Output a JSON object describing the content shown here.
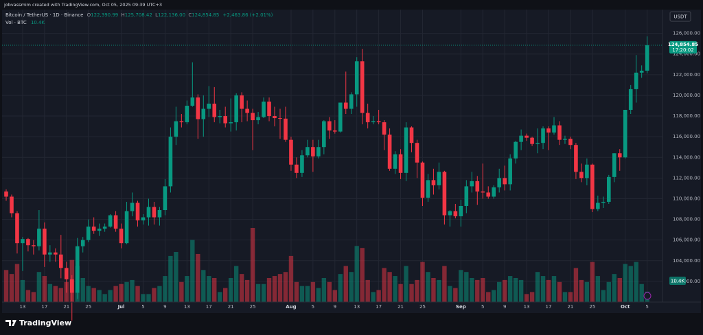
{
  "chart_data": {
    "type": "candlestick",
    "credit": "jobvassmim created with TradingView.com, Oct 05, 2025 09:39 UTC+3",
    "title": "Bitcoin / TetherUS · 1D · Binance",
    "ohlc_labels": [
      {
        "key": "O",
        "value": "122,390.99"
      },
      {
        "key": "H",
        "value": "125,708.42"
      },
      {
        "key": "L",
        "value": "122,136.00"
      },
      {
        "key": "C",
        "value": "124,854.85"
      }
    ],
    "change": "+2,463.86 (+2.01%)",
    "volume_name": "Vol · BTC",
    "volume_last": "10.4K",
    "currency": "USDT",
    "price_tag": "124,854.85",
    "countdown": "17:20:02",
    "brand": "TradingView",
    "up_color": "#089981",
    "down_color": "#f23645",
    "grid": true,
    "categories": [
      null,
      null,
      null,
      "13",
      null,
      null,
      null,
      "17",
      null,
      null,
      null,
      "21",
      null,
      null,
      null,
      "25",
      null,
      null,
      null,
      null,
      null,
      "Jul",
      null,
      null,
      null,
      "5",
      null,
      null,
      null,
      "9",
      null,
      null,
      null,
      "13",
      null,
      null,
      null,
      "17",
      null,
      null,
      null,
      "21",
      null,
      null,
      null,
      "25",
      null,
      null,
      null,
      null,
      null,
      null,
      "Aug",
      null,
      null,
      null,
      "5",
      null,
      null,
      null,
      "9",
      null,
      null,
      null,
      "13",
      null,
      null,
      null,
      "17",
      null,
      null,
      null,
      "21",
      null,
      null,
      null,
      "25",
      null,
      null,
      null,
      null,
      null,
      null,
      "Sep",
      null,
      null,
      null,
      "5",
      null,
      null,
      null,
      "9",
      null,
      null,
      null,
      "13",
      null,
      null,
      null,
      "17",
      null,
      null,
      null,
      "21",
      null,
      null,
      null,
      "25",
      null,
      null,
      null,
      null,
      null,
      "Oct",
      null,
      null,
      null,
      "5"
    ],
    "open": [
      110700,
      110200,
      108600,
      105700,
      106100,
      105500,
      105400,
      107100,
      104600,
      104800,
      104600,
      103300,
      102200,
      100900,
      105400,
      106000,
      107300,
      106900,
      107100,
      107300,
      108400,
      107100,
      105700,
      108800,
      109600,
      107900,
      108200,
      109200,
      108200,
      108900,
      111200,
      116000,
      117500,
      117400,
      119000,
      119800,
      117700,
      118700,
      119200,
      117900,
      118000,
      117300,
      117400,
      120000,
      118700,
      118300,
      117600,
      117900,
      119400,
      118000,
      117800,
      117750,
      115700,
      113300,
      112500,
      114200,
      115000,
      114100,
      115000,
      117500,
      116600,
      116500,
      119300,
      118700,
      120100,
      123300,
      118300,
      117400,
      117500,
      117400,
      116200,
      112900,
      114300,
      112500,
      116900,
      115400,
      113500,
      110100,
      111800,
      111300,
      112600,
      108400,
      108800,
      108300,
      109300,
      111200,
      111700,
      110700,
      110600,
      110200,
      111100,
      112000,
      111400,
      113900,
      115500,
      116100,
      115900,
      115300,
      115400,
      116800,
      116400,
      117100,
      115700,
      115800,
      115200,
      112600,
      112000,
      113300,
      109000,
      109600,
      109700,
      112100,
      114400,
      114000,
      118600,
      120600,
      122200,
      122390.99
    ],
    "high": [
      110900,
      110400,
      108800,
      106300,
      106200,
      106000,
      108900,
      107700,
      105500,
      105200,
      106500,
      103900,
      102600,
      106200,
      106300,
      108000,
      108200,
      107600,
      107600,
      108500,
      108800,
      107600,
      109700,
      110600,
      109800,
      108500,
      110000,
      109700,
      109200,
      111900,
      116900,
      118900,
      118200,
      119500,
      123200,
      120100,
      120000,
      120900,
      120800,
      118600,
      118900,
      119700,
      120200,
      120300,
      119500,
      118700,
      118400,
      119800,
      119800,
      118900,
      118700,
      118900,
      116000,
      114000,
      114700,
      115700,
      115700,
      115700,
      117600,
      117900,
      117600,
      119300,
      122300,
      120300,
      123700,
      124500,
      119200,
      118000,
      118600,
      117600,
      116800,
      114600,
      114800,
      117400,
      117000,
      115700,
      113600,
      112400,
      112900,
      113500,
      112700,
      108900,
      109500,
      109900,
      111800,
      112600,
      112200,
      113400,
      111200,
      111300,
      112900,
      113200,
      114300,
      115600,
      116700,
      116300,
      116000,
      116800,
      117000,
      117000,
      117900,
      117500,
      116100,
      116000,
      115400,
      113400,
      113900,
      113400,
      110300,
      110200,
      112300,
      114400,
      114800,
      118600,
      121000,
      123900,
      122900,
      125708.42
    ],
    "low": [
      109800,
      108200,
      104700,
      103000,
      104900,
      104600,
      105000,
      103400,
      103900,
      103900,
      102300,
      100900,
      98200,
      100300,
      104800,
      105800,
      106600,
      106400,
      106800,
      107200,
      106800,
      105200,
      105600,
      108300,
      107300,
      107500,
      107400,
      107500,
      107400,
      108400,
      110600,
      115200,
      116900,
      117200,
      118900,
      115800,
      116000,
      117900,
      117400,
      117300,
      116900,
      116500,
      116600,
      117400,
      117500,
      114700,
      117200,
      117800,
      117500,
      117000,
      115800,
      115500,
      112700,
      112000,
      112100,
      114000,
      112600,
      113900,
      114300,
      115800,
      116300,
      116400,
      118200,
      118200,
      118900,
      117200,
      116800,
      117200,
      117200,
      114700,
      112700,
      112400,
      111900,
      111700,
      114500,
      112000,
      109300,
      109700,
      110400,
      110900,
      107500,
      107300,
      108100,
      107300,
      108600,
      110600,
      109400,
      110000,
      110000,
      110000,
      110600,
      110800,
      110800,
      113400,
      114700,
      115600,
      115100,
      114400,
      114800,
      114700,
      116200,
      115200,
      115300,
      114800,
      111900,
      111600,
      111300,
      108700,
      108800,
      109100,
      109500,
      111600,
      112700,
      113900,
      118200,
      119300,
      121700,
      122136
    ],
    "close": [
      110200,
      108600,
      105700,
      106100,
      105500,
      105400,
      107100,
      104600,
      104800,
      104600,
      103300,
      102200,
      100900,
      105400,
      106000,
      107300,
      106900,
      107100,
      107300,
      108400,
      107100,
      105700,
      108800,
      109600,
      107900,
      108200,
      109200,
      108200,
      108900,
      111200,
      116000,
      117500,
      117400,
      119000,
      119800,
      117700,
      118700,
      119200,
      117900,
      118000,
      117300,
      117400,
      120000,
      118700,
      118300,
      117600,
      117900,
      119400,
      118000,
      117800,
      117750,
      115700,
      113300,
      112500,
      114200,
      115000,
      114100,
      115000,
      117500,
      116600,
      116500,
      119300,
      118700,
      120100,
      123300,
      118300,
      117400,
      117500,
      117400,
      116200,
      112900,
      114300,
      112500,
      116900,
      115400,
      113500,
      110100,
      111800,
      111300,
      112600,
      108400,
      108800,
      108300,
      109300,
      111200,
      111700,
      110700,
      110600,
      110200,
      111100,
      112000,
      111400,
      113900,
      115500,
      116100,
      115900,
      115300,
      115400,
      116800,
      116400,
      117100,
      115700,
      115800,
      115200,
      112600,
      112000,
      113300,
      109000,
      109600,
      109700,
      112100,
      114400,
      114000,
      118600,
      120600,
      122200,
      122390.99,
      124854.85
    ],
    "volume": [
      32,
      28,
      38,
      22,
      12,
      10,
      30,
      26,
      18,
      16,
      14,
      20,
      42,
      36,
      24,
      16,
      14,
      12,
      8,
      12,
      16,
      18,
      20,
      22,
      16,
      8,
      8,
      14,
      16,
      26,
      46,
      50,
      20,
      26,
      62,
      48,
      32,
      26,
      24,
      10,
      14,
      24,
      36,
      28,
      22,
      74,
      18,
      18,
      24,
      26,
      28,
      30,
      46,
      20,
      16,
      16,
      20,
      14,
      24,
      20,
      12,
      28,
      36,
      30,
      56,
      54,
      22,
      10,
      12,
      34,
      30,
      26,
      18,
      36,
      18,
      22,
      40,
      30,
      24,
      22,
      36,
      16,
      14,
      32,
      30,
      24,
      22,
      24,
      10,
      12,
      20,
      22,
      26,
      24,
      22,
      8,
      10,
      30,
      26,
      22,
      26,
      20,
      10,
      10,
      34,
      22,
      20,
      40,
      26,
      12,
      20,
      28,
      24,
      38,
      36,
      40,
      18,
      10.4
    ],
    "ylim": [
      100000,
      128300
    ],
    "yticks": [
      {
        "value": 102000,
        "label": "102,000.00"
      },
      {
        "value": 104000,
        "label": "104,000.00"
      },
      {
        "value": 106000,
        "label": "106,000.00"
      },
      {
        "value": 108000,
        "label": "108,000.00"
      },
      {
        "value": 110000,
        "label": "110,000.00"
      },
      {
        "value": 112000,
        "label": "112,000.00"
      },
      {
        "value": 114000,
        "label": "114,000.00"
      },
      {
        "value": 116000,
        "label": "116,000.00"
      },
      {
        "value": 118000,
        "label": "118,000.00"
      },
      {
        "value": 120000,
        "label": "120,000.00"
      },
      {
        "value": 122000,
        "label": "122,000.00"
      },
      {
        "value": 124000,
        "label": "124,000.00"
      },
      {
        "value": 126000,
        "label": "126,000.00"
      }
    ]
  }
}
